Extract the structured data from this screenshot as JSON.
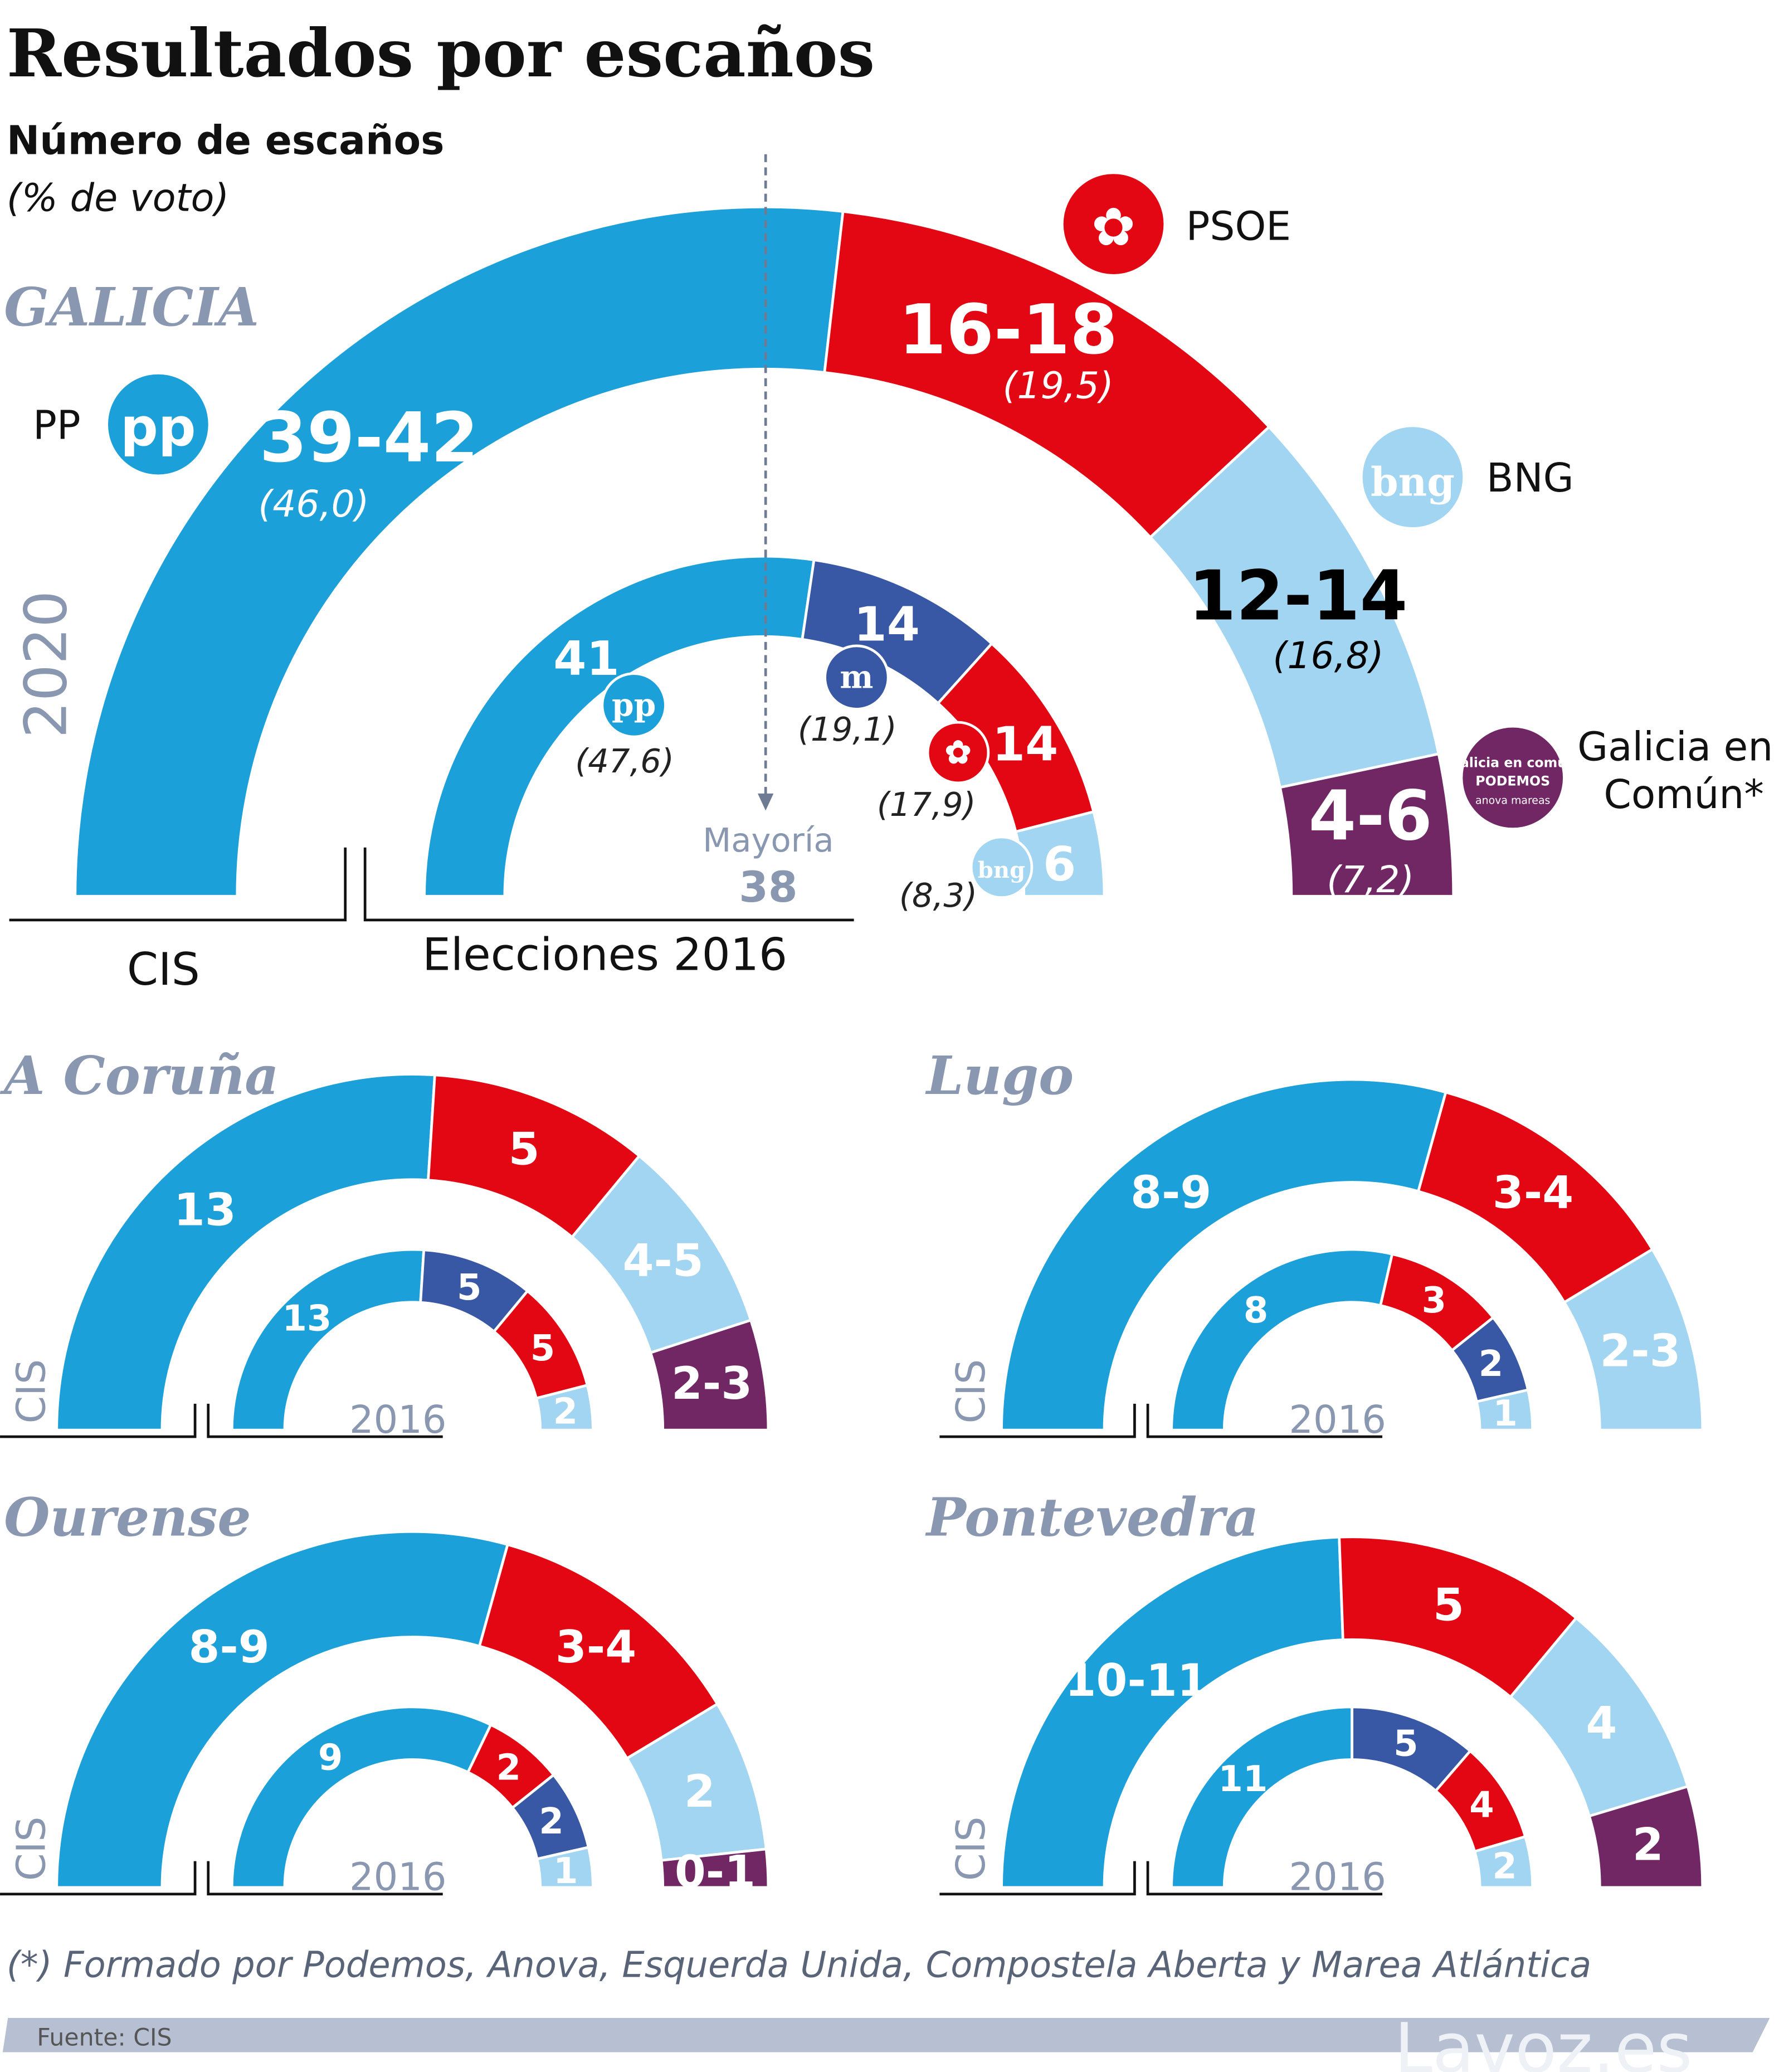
{
  "title": "Resultados por escaños",
  "subtitle": "Número de escaños",
  "subtitle2": "(% de voto)",
  "majority": {
    "label": "Mayoría",
    "value": "38"
  },
  "footnote": "(*) Formado por Podemos, Anova, Esquerda Unida, Compostela Aberta y Marea Atlántica",
  "source": "Fuente: CIS",
  "brand": "Lavoz.es",
  "colors": {
    "PP": "#1ca0da",
    "PSOE": "#e30613",
    "BNG": "#a1d5f2",
    "GeC": "#722765",
    "En Marea": "#3857a4",
    "region_title": "#8a97b0",
    "footer_bar": "#b7c0d3"
  },
  "legend": {
    "PP": "PP",
    "PSOE": "PSOE",
    "BNG": "BNG",
    "GeC_line1": "Galicia en",
    "GeC_line2": "Común*"
  },
  "chart_data": [
    {
      "type": "semicircle-donut",
      "title": "GALICIA",
      "year_label": "2020",
      "rings": [
        {
          "name": "CIS",
          "segments": [
            {
              "party": "PP",
              "label": "39-42",
              "seats": [
                39,
                42
              ],
              "vote": "(46,0)"
            },
            {
              "party": "PSOE",
              "label": "16-18",
              "seats": [
                16,
                18
              ],
              "vote": "(19,5)"
            },
            {
              "party": "BNG",
              "label": "12-14",
              "seats": [
                12,
                14
              ],
              "vote": "(16,8)"
            },
            {
              "party": "GeC",
              "label": "4-6",
              "seats": [
                4,
                6
              ],
              "vote": "(7,2)"
            }
          ]
        },
        {
          "name": "Elecciones 2016",
          "segments": [
            {
              "party": "PP",
              "label": "41",
              "seats": [
                41,
                41
              ],
              "vote": "(47,6)"
            },
            {
              "party": "En Marea",
              "label": "14",
              "seats": [
                14,
                14
              ],
              "vote": "(19,1)"
            },
            {
              "party": "PSOE",
              "label": "14",
              "seats": [
                14,
                14
              ],
              "vote": "(17,9)"
            },
            {
              "party": "BNG",
              "label": "6",
              "seats": [
                6,
                6
              ],
              "vote": "(8,3)"
            }
          ]
        }
      ]
    },
    {
      "type": "semicircle-donut",
      "title": "A Coruña",
      "rings": [
        {
          "name": "CIS",
          "segments": [
            {
              "party": "PP",
              "label": "13",
              "seats": [
                13,
                13
              ]
            },
            {
              "party": "PSOE",
              "label": "5",
              "seats": [
                5,
                5
              ]
            },
            {
              "party": "BNG",
              "label": "4-5",
              "seats": [
                4,
                5
              ]
            },
            {
              "party": "GeC",
              "label": "2-3",
              "seats": [
                2,
                3
              ]
            }
          ]
        },
        {
          "name": "2016",
          "segments": [
            {
              "party": "PP",
              "label": "13",
              "seats": [
                13,
                13
              ]
            },
            {
              "party": "En Marea",
              "label": "5",
              "seats": [
                5,
                5
              ]
            },
            {
              "party": "PSOE",
              "label": "5",
              "seats": [
                5,
                5
              ]
            },
            {
              "party": "BNG",
              "label": "2",
              "seats": [
                2,
                2
              ]
            }
          ]
        }
      ]
    },
    {
      "type": "semicircle-donut",
      "title": "Lugo",
      "rings": [
        {
          "name": "CIS",
          "segments": [
            {
              "party": "PP",
              "label": "8-9",
              "seats": [
                8,
                9
              ]
            },
            {
              "party": "PSOE",
              "label": "3-4",
              "seats": [
                3,
                4
              ]
            },
            {
              "party": "BNG",
              "label": "2-3",
              "seats": [
                2,
                3
              ]
            }
          ]
        },
        {
          "name": "2016",
          "segments": [
            {
              "party": "PP",
              "label": "8",
              "seats": [
                8,
                8
              ]
            },
            {
              "party": "PSOE",
              "label": "3",
              "seats": [
                3,
                3
              ]
            },
            {
              "party": "En Marea",
              "label": "2",
              "seats": [
                2,
                2
              ]
            },
            {
              "party": "BNG",
              "label": "1",
              "seats": [
                1,
                1
              ]
            }
          ]
        }
      ]
    },
    {
      "type": "semicircle-donut",
      "title": "Ourense",
      "rings": [
        {
          "name": "CIS",
          "segments": [
            {
              "party": "PP",
              "label": "8-9",
              "seats": [
                8,
                9
              ]
            },
            {
              "party": "PSOE",
              "label": "3-4",
              "seats": [
                3,
                4
              ]
            },
            {
              "party": "BNG",
              "label": "2",
              "seats": [
                2,
                2
              ]
            },
            {
              "party": "GeC",
              "label": "0-1",
              "seats": [
                0,
                1
              ]
            }
          ]
        },
        {
          "name": "2016",
          "segments": [
            {
              "party": "PP",
              "label": "9",
              "seats": [
                9,
                9
              ]
            },
            {
              "party": "PSOE",
              "label": "2",
              "seats": [
                2,
                2
              ]
            },
            {
              "party": "En Marea",
              "label": "2",
              "seats": [
                2,
                2
              ]
            },
            {
              "party": "BNG",
              "label": "1",
              "seats": [
                1,
                1
              ]
            }
          ]
        }
      ]
    },
    {
      "type": "semicircle-donut",
      "title": "Pontevedra",
      "rings": [
        {
          "name": "CIS",
          "segments": [
            {
              "party": "PP",
              "label": "10-11",
              "seats": [
                10,
                11
              ]
            },
            {
              "party": "PSOE",
              "label": "5",
              "seats": [
                5,
                5
              ]
            },
            {
              "party": "BNG",
              "label": "4",
              "seats": [
                4,
                4
              ]
            },
            {
              "party": "GeC",
              "label": "2",
              "seats": [
                2,
                2
              ]
            }
          ]
        },
        {
          "name": "2016",
          "segments": [
            {
              "party": "PP",
              "label": "11",
              "seats": [
                11,
                11
              ]
            },
            {
              "party": "En Marea",
              "label": "5",
              "seats": [
                5,
                5
              ]
            },
            {
              "party": "PSOE",
              "label": "4",
              "seats": [
                4,
                4
              ]
            },
            {
              "party": "BNG",
              "label": "2",
              "seats": [
                2,
                2
              ]
            }
          ]
        }
      ]
    }
  ]
}
